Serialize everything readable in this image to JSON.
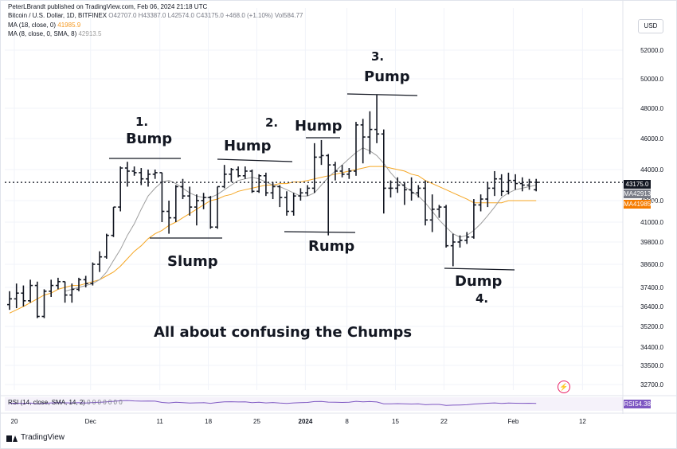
{
  "header": {
    "published_by": "PeterLBrandt published on TradingView.com, Feb 06, 2024 21:18 UTC",
    "symbol": "Bitcoin / U.S. Dollar, 1D, BITFINEX",
    "ohlc": "O42707.0 H43387.0 L42574.0 C43175.0 +468.0 (+1.10%) Vol584.77",
    "ma18_label": "MA (18, close, 0)",
    "ma18_value": "41985.9",
    "ma8_label": "MA (8, close, 0, SMA, 8)",
    "ma8_value": "42913.5"
  },
  "currency_button": "USD",
  "annotations": {
    "bump_num": "1.",
    "bump": "Bump",
    "slump": "Slump",
    "hump1": "Hump",
    "hump2_num": "2.",
    "hump2": "Hump",
    "rump": "Rump",
    "pump_num": "3.",
    "pump": "Pump",
    "dump": "Dump",
    "dump_num": "4.",
    "caption": "All about confusing the Chumps"
  },
  "rsi": {
    "label": "RSI (14, close, SMA, 14, 2)",
    "values_text": "0 0 0 0 0 0 0",
    "value": "54.38",
    "tag": "RSI"
  },
  "price_tags": {
    "last": "43175.0",
    "ma8_tag": "MA",
    "ma8": "42913.5",
    "ma18_tag": "MA",
    "ma18": "41985.9"
  },
  "brand": "TradingView",
  "colors": {
    "bar": "#131722",
    "ma18": "#f5a623",
    "ma8": "#9e9e9e",
    "rsi": "#7e57c2",
    "grid": "#f0f3fa",
    "last_tag": "#131722",
    "ma8_tag": "#787b86",
    "ma18_tag": "#f57c00"
  },
  "chart_data": {
    "type": "ohlc",
    "y_ticks": [
      32700,
      33500,
      34400,
      35200,
      36400,
      37400,
      38600,
      39800,
      41000,
      42000,
      44000,
      46000,
      48000,
      50000,
      52000
    ],
    "y_tick_labels": [
      "32700.0",
      "33500.0",
      "34400.0",
      "35200.0",
      "36400.0",
      "37400.0",
      "38600.0",
      "39800.0",
      "41000.0",
      "42000.0",
      "44000.0",
      "46000.0",
      "48000.0",
      "50000.0",
      "52000.0"
    ],
    "ylim": [
      32000,
      54000
    ],
    "x_labels": [
      {
        "day": 0,
        "label": "20"
      },
      {
        "day": 11,
        "label": "Dec"
      },
      {
        "day": 21,
        "label": "11"
      },
      {
        "day": 28,
        "label": "18"
      },
      {
        "day": 35,
        "label": "25"
      },
      {
        "day": 42,
        "label": "2024"
      },
      {
        "day": 48,
        "label": "8"
      },
      {
        "day": 55,
        "label": "15"
      },
      {
        "day": 62,
        "label": "22"
      },
      {
        "day": 72,
        "label": "Feb"
      },
      {
        "day": 82,
        "label": "12"
      }
    ],
    "last_price": 43175,
    "bars": [
      [
        36500,
        37200,
        36200,
        36800
      ],
      [
        36800,
        37600,
        36300,
        37100
      ],
      [
        37100,
        37500,
        36400,
        36700
      ],
      [
        36700,
        37800,
        36600,
        37500
      ],
      [
        37500,
        37700,
        35700,
        35800
      ],
      [
        35800,
        37300,
        35700,
        37200
      ],
      [
        37200,
        37800,
        36900,
        37500
      ],
      [
        37500,
        37900,
        37300,
        37700
      ],
      [
        37700,
        37700,
        36600,
        37000
      ],
      [
        37000,
        37600,
        36600,
        37300
      ],
      [
        37300,
        37900,
        37200,
        37800
      ],
      [
        37800,
        38000,
        37400,
        37600
      ],
      [
        37600,
        38700,
        37500,
        38600
      ],
      [
        38600,
        39300,
        38200,
        39000
      ],
      [
        39000,
        40300,
        38900,
        40200
      ],
      [
        40200,
        41700,
        40100,
        41700
      ],
      [
        41700,
        44200,
        41500,
        44100
      ],
      [
        44100,
        44500,
        42900,
        43900
      ],
      [
        43900,
        44200,
        43600,
        43800
      ],
      [
        43800,
        44100,
        43000,
        43400
      ],
      [
        43400,
        44000,
        42900,
        43700
      ],
      [
        43700,
        44000,
        43400,
        43800
      ],
      [
        43800,
        43800,
        41000,
        41500
      ],
      [
        41500,
        42000,
        40300,
        41200
      ],
      [
        41200,
        43000,
        41000,
        42900
      ],
      [
        42900,
        43400,
        42100,
        42300
      ],
      [
        42300,
        42900,
        41300,
        41700
      ],
      [
        41700,
        42400,
        40800,
        42000
      ],
      [
        42000,
        42500,
        41600,
        42200
      ],
      [
        42200,
        42300,
        40600,
        40700
      ],
      [
        40700,
        42900,
        40600,
        42900
      ],
      [
        42900,
        44300,
        42800,
        43700
      ],
      [
        43700,
        44100,
        43200,
        44000
      ],
      [
        44000,
        44200,
        43500,
        43600
      ],
      [
        43600,
        44200,
        43400,
        43900
      ],
      [
        43900,
        44000,
        42500,
        42600
      ],
      [
        42600,
        43700,
        42500,
        43600
      ],
      [
        43600,
        43800,
        42300,
        42500
      ],
      [
        42500,
        43200,
        42100,
        42900
      ],
      [
        42900,
        43000,
        41700,
        42200
      ],
      [
        42200,
        42600,
        41300,
        41500
      ],
      [
        41500,
        42500,
        41300,
        42300
      ],
      [
        42300,
        42800,
        42000,
        42500
      ],
      [
        42500,
        43000,
        42300,
        42800
      ],
      [
        42800,
        45700,
        42500,
        44800
      ],
      [
        44800,
        45900,
        44300,
        44900
      ],
      [
        44900,
        45000,
        40200,
        44300
      ],
      [
        44300,
        44500,
        43300,
        43900
      ],
      [
        43900,
        44300,
        43500,
        43700
      ],
      [
        43700,
        44100,
        43400,
        43900
      ],
      [
        43900,
        47100,
        43600,
        46900
      ],
      [
        46900,
        47300,
        44400,
        46100
      ],
      [
        46100,
        47800,
        45000,
        46600
      ],
      [
        46600,
        48900,
        45700,
        46300
      ],
      [
        46300,
        46600,
        41400,
        42800
      ],
      [
        42800,
        43300,
        42200,
        42800
      ],
      [
        42800,
        43500,
        42500,
        43000
      ],
      [
        43000,
        43200,
        41800,
        42700
      ],
      [
        42700,
        43500,
        42000,
        42500
      ],
      [
        42500,
        43000,
        42200,
        42800
      ],
      [
        42800,
        43300,
        40800,
        41100
      ],
      [
        41100,
        42400,
        40400,
        41600
      ],
      [
        41600,
        41800,
        41200,
        41700
      ],
      [
        41700,
        41800,
        39500,
        39600
      ],
      [
        39600,
        40300,
        38500,
        39800
      ],
      [
        39800,
        40200,
        39500,
        39900
      ],
      [
        39900,
        40400,
        39700,
        40100
      ],
      [
        40100,
        42100,
        40000,
        41800
      ],
      [
        41800,
        42400,
        41500,
        42100
      ],
      [
        42100,
        43200,
        41700,
        42800
      ],
      [
        42800,
        43900,
        42300,
        43400
      ],
      [
        43400,
        43700,
        42300,
        42600
      ],
      [
        42600,
        43800,
        42400,
        43300
      ],
      [
        43300,
        43700,
        42700,
        43100
      ],
      [
        43100,
        43500,
        42600,
        43000
      ],
      [
        43000,
        43400,
        42700,
        43200
      ],
      [
        42700,
        43400,
        42600,
        43175
      ]
    ],
    "ma18_start_day": 0,
    "ma18": [
      36000,
      36200,
      36400,
      36600,
      36800,
      37000,
      37100,
      37300,
      37400,
      37500,
      37500,
      37600,
      37700,
      37800,
      38000,
      38200,
      38500,
      38900,
      39300,
      39600,
      40000,
      40300,
      40500,
      40800,
      41000,
      41200,
      41400,
      41600,
      41800,
      42000,
      42100,
      42300,
      42400,
      42600,
      42700,
      42800,
      42900,
      43000,
      43000,
      43100,
      43100,
      43200,
      43200,
      43300,
      43400,
      43500,
      43600,
      43700,
      43800,
      43900,
      44000,
      44100,
      44200,
      44200,
      44200,
      44100,
      44000,
      43900,
      43700,
      43600,
      43300,
      43100,
      42900,
      42700,
      42500,
      42300,
      42100,
      41900,
      41900,
      41900,
      41900,
      41900,
      42000,
      42000,
      42000,
      42000,
      42000
    ],
    "ma8_start_day": 8,
    "ma8": [
      37200,
      37300,
      37400,
      37500,
      37600,
      37800,
      38200,
      38800,
      39400,
      40200,
      40900,
      41600,
      42300,
      42800,
      43200,
      43300,
      43100,
      42800,
      42500,
      42300,
      42200,
      42200,
      42400,
      42700,
      43000,
      43300,
      43400,
      43500,
      43400,
      43200,
      43000,
      42900,
      42700,
      42500,
      42300,
      42300,
      42500,
      43000,
      43500,
      43900,
      44300,
      44700,
      45100,
      45400,
      45200,
      44900,
      44400,
      43800,
      43300,
      42900,
      42600,
      42300,
      41900,
      41500,
      41100,
      40700,
      40300,
      40100,
      40200,
      40500,
      40900,
      41300,
      41700,
      42200,
      42500,
      42700,
      42800,
      42900,
      43000
    ],
    "rsi_values": [
      55,
      56,
      54,
      57,
      52,
      55,
      58,
      60,
      59,
      58,
      60,
      57,
      61,
      63,
      66,
      70,
      74,
      76,
      73,
      71,
      72,
      71,
      62,
      58,
      63,
      60,
      57,
      59,
      60,
      55,
      62,
      66,
      67,
      65,
      66,
      60,
      63,
      58,
      61,
      57,
      54,
      58,
      60,
      62,
      68,
      69,
      64,
      63,
      62,
      63,
      70,
      66,
      68,
      65,
      52,
      52,
      53,
      51,
      50,
      52,
      45,
      47,
      47,
      40,
      42,
      43,
      45,
      50,
      53,
      56,
      58,
      54,
      57,
      56,
      55,
      56,
      54.38
    ]
  }
}
